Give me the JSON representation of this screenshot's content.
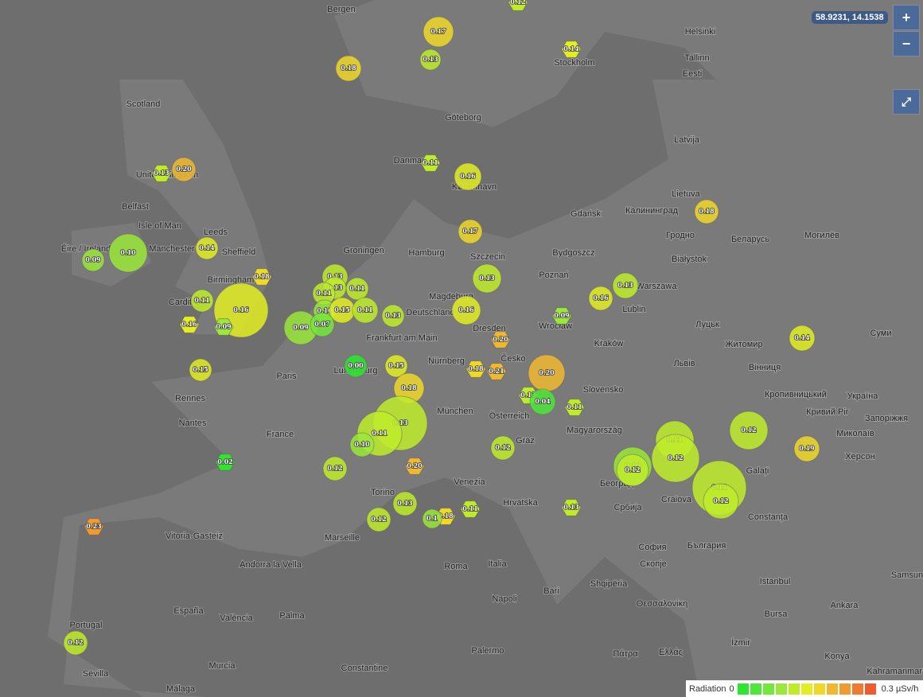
{
  "coordinates": "58.9231, 14.1538",
  "controls": {
    "zoom_in": "+",
    "zoom_out": "−",
    "fullscreen": "⤢"
  },
  "legend": {
    "title": "Radiation",
    "min": "0",
    "max": "0.3 µSv/h",
    "colors": [
      "#2ee62e",
      "#4ee63a",
      "#74e83a",
      "#9ae83a",
      "#bfec2a",
      "#e2ee22",
      "#f0d828",
      "#f0b830",
      "#f09a30",
      "#f07a30",
      "#f05a30"
    ]
  },
  "markers": [
    "0.12",
    "0.17",
    "0.13",
    "0.18",
    "0.14",
    "0.13",
    "0.20",
    "0.11",
    "0.16",
    "0.17",
    "0.18",
    "0.09",
    "0.10",
    "0.14",
    "0.18",
    "0.13",
    "0.13",
    "0.11",
    "0.11",
    "0.13",
    "0.13",
    "0.16",
    "0.11",
    "0.16",
    "0.10",
    "0.15",
    "0.11",
    "0.13",
    "0.16",
    "0.09",
    "0.16",
    "0.09",
    "0.09",
    "0.07",
    "0.20",
    "0.14",
    "0.00",
    "0.15",
    "0.15",
    "0.18",
    "0.21",
    "0.20",
    "0.18",
    "0.13",
    "0.04",
    "0.11",
    "0.13",
    "0.11",
    "0.10",
    "0.12",
    "0.11",
    "0.12",
    "0.19",
    "0.12",
    "0.02",
    "0.20",
    "0.12",
    "0.10",
    "0.12",
    "0.11",
    "0.12",
    "0.13",
    "0.11",
    "0.13",
    "0.12",
    "0.18",
    "0.1",
    "0.23",
    "0.12"
  ],
  "places": [
    "Bergen",
    "Helsinki",
    "Tallinn",
    "Eesti",
    "Stockholm",
    "Scotland",
    "Göteborg",
    "Latvija",
    "Danmark",
    "København",
    "United Kingdom",
    "Lietuva",
    "Belfast",
    "Isle of Man",
    "Leeds",
    "Gdańsk",
    "Калининград",
    "Гродно",
    "Беларусь",
    "Могилёв",
    "Éire / Ireland",
    "Manchester",
    "Sheffield",
    "Groningen",
    "Hamburg",
    "Szczecin",
    "Bydgoszcz",
    "Białystok",
    "Birmingham",
    "Poznań",
    "Warszawa",
    "Magdeburg",
    "Cardiff",
    "Lublin",
    "Луцьк",
    "Deutschland",
    "Frankfurt am Main",
    "Wrocław",
    "Dresden",
    "Kraków",
    "Житомир",
    "Суми",
    "Luxemburg",
    "Paris",
    "Nürnberg",
    "Česko",
    "Львів",
    "Вінниця",
    "Rennes",
    "München",
    "Slovensko",
    "Кропивницький",
    "Україна",
    "Nantes",
    "France",
    "Österreich",
    "Magyarország",
    "Кривий Ріг",
    "Запоріжжя",
    "Graz",
    "Миколаїв",
    "Херсон",
    "Galați",
    "Torino",
    "Venezia",
    "Hrvatska",
    "Београд",
    "Србија",
    "Craiova",
    "Constanța",
    "Marseille",
    "Vitoria-Gasteiz",
    "Andorra la Vella",
    "Italia",
    "Roma",
    "София",
    "България",
    "Скопје",
    "Shqipëria",
    "Istanbul",
    "España",
    "València",
    "Palma",
    "Napoli",
    "Bari",
    "Θεσσαλονίκη",
    "Portugal",
    "Murcia",
    "Sevilla",
    "Palermo",
    "Πάτρα",
    "Ελλάς",
    "Ankara",
    "İzmir",
    "Konya",
    "Málaga",
    "Constantine",
    "Bursa",
    "Samsun",
    "Kahramanmaraş"
  ]
}
